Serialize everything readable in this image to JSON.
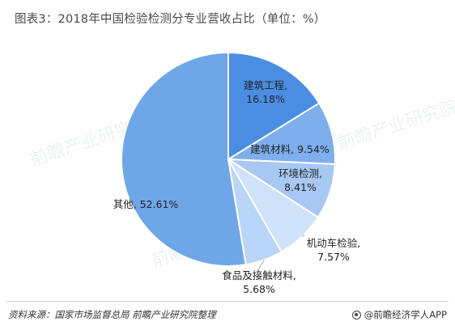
{
  "title": "图表3：2018年中国检验检测分专业营收占比（单位：%）",
  "footer": {
    "source": "资料来源：国家市场监督总局 前瞻产业研究院整理",
    "brand": "@前瞻经济学人APP"
  },
  "watermark": "前瞻产业研究院",
  "colors": {
    "accent": "#4a8ee3",
    "other_slice": "#6fa6e8"
  },
  "chart_data": {
    "type": "pie",
    "title": "图表3：2018年中国检验检测分专业营收占比（单位：%）",
    "unit": "%",
    "slices": [
      {
        "label": "建筑工程",
        "value": 16.18,
        "text_line1": "建筑工程,",
        "text_line2": "16.18%",
        "color": "#4a8ee3"
      },
      {
        "label": "建筑材料",
        "value": 9.54,
        "text_line1": "建筑材料, 9.54%",
        "text_line2": "",
        "color": "#7eaeec"
      },
      {
        "label": "环境检测",
        "value": 8.41,
        "text_line1": "环境检测,",
        "text_line2": "8.41%",
        "color": "#a6c8f3"
      },
      {
        "label": "机动车检验",
        "value": 7.57,
        "text_line1": "机动车检验,",
        "text_line2": "7.57%",
        "color": "#cfe2fa"
      },
      {
        "label": "食品及接触材料",
        "value": 5.68,
        "text_line1": "食品及接触材料,",
        "text_line2": "5.68%",
        "color": "#b9d5f7"
      },
      {
        "label": "其他",
        "value": 52.61,
        "text_line1": "其他, 52.61%",
        "text_line2": "",
        "color": "#6fa6e8"
      }
    ]
  }
}
